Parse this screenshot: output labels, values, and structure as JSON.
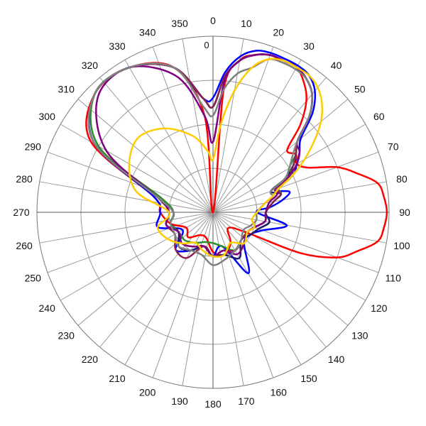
{
  "chart_data": {
    "type": "line",
    "subtype": "polar",
    "title": "",
    "angle_unit": "degrees",
    "angle_direction": "clockwise",
    "zero_position": "top",
    "angle_tick_labels": [
      "0",
      "10",
      "20",
      "30",
      "40",
      "50",
      "60",
      "70",
      "80",
      "90",
      "100",
      "110",
      "120",
      "130",
      "140",
      "150",
      "160",
      "170",
      "180",
      "190",
      "200",
      "210",
      "220",
      "230",
      "240",
      "250",
      "260",
      "270",
      "280",
      "290",
      "300",
      "310",
      "320",
      "330",
      "340",
      "350"
    ],
    "radial_axis": {
      "rmin": -40,
      "rmax": 0,
      "rings": [
        -30,
        -20,
        -10,
        0
      ],
      "tick_label": "0",
      "tick_label_value": 0
    },
    "grid": true,
    "legend": "none",
    "series": [
      {
        "color": "#ff0000",
        "theta": [
          0,
          5,
          10,
          15,
          20,
          25,
          30,
          35,
          40,
          45,
          50,
          55,
          60,
          65,
          70,
          75,
          80,
          85,
          90,
          95,
          100,
          105,
          110,
          115,
          120,
          135,
          150,
          165,
          180,
          195,
          210,
          225,
          240,
          255,
          270,
          285,
          300,
          315,
          330,
          345,
          355
        ],
        "r": [
          -40,
          -12,
          -5,
          -3,
          -2,
          -2,
          -2,
          -4,
          -7,
          -12,
          -18,
          -17,
          -18,
          -16,
          -10,
          -6,
          -2,
          -1,
          -0.5,
          -1,
          -2,
          -6,
          -10,
          -18,
          -30,
          -35,
          -32,
          -30,
          -31,
          -34,
          -34,
          -32,
          -33,
          -30,
          -28,
          -26,
          -8,
          -2,
          -2,
          -6,
          -18
        ]
      },
      {
        "color": "#0000ff",
        "theta": [
          0,
          5,
          10,
          15,
          20,
          25,
          30,
          35,
          40,
          45,
          50,
          55,
          60,
          65,
          70,
          75,
          80,
          85,
          90,
          100,
          110,
          120,
          135,
          150,
          165,
          180,
          195,
          210,
          225,
          240,
          255,
          270,
          285,
          300,
          315,
          330,
          345,
          355
        ],
        "r": [
          -14,
          -8,
          -4,
          -2,
          -1.5,
          -1.5,
          -1.5,
          -2,
          -4,
          -8,
          -14,
          -16,
          -18,
          -20,
          -25,
          -22,
          -24,
          -27,
          -30,
          -23,
          -28,
          -30,
          -30,
          -24,
          -32,
          -30,
          -32,
          -30,
          -28,
          -32,
          -27,
          -28,
          -26,
          -9,
          -2,
          -2,
          -6,
          -14
        ]
      },
      {
        "color": "#1a1a6e",
        "theta": [
          0,
          5,
          10,
          15,
          20,
          25,
          30,
          35,
          40,
          45,
          50,
          55,
          60,
          65,
          70,
          75,
          80,
          90,
          100,
          110,
          120,
          135,
          150,
          165,
          180,
          195,
          210,
          225,
          240,
          255,
          270,
          285,
          300,
          315,
          330,
          345,
          355
        ],
        "r": [
          -16,
          -9,
          -5,
          -3,
          -2,
          -2,
          -2,
          -3,
          -5,
          -9,
          -15,
          -17,
          -19,
          -22,
          -26,
          -24,
          -26,
          -28,
          -27,
          -29,
          -30,
          -31,
          -28,
          -30,
          -30,
          -32,
          -30,
          -29,
          -31,
          -30,
          -31,
          -27,
          -9,
          -2,
          -2,
          -6,
          -14
        ]
      },
      {
        "color": "#2e8b2e",
        "theta": [
          0,
          5,
          10,
          15,
          20,
          25,
          30,
          35,
          40,
          45,
          50,
          55,
          60,
          65,
          70,
          75,
          80,
          90,
          100,
          110,
          120,
          135,
          150,
          165,
          180,
          195,
          210,
          225,
          240,
          255,
          270,
          285,
          300,
          315,
          330,
          345,
          355
        ],
        "r": [
          -16,
          -9,
          -5,
          -3,
          -2,
          -2,
          -2,
          -3,
          -5,
          -9,
          -15,
          -17,
          -20,
          -20,
          -24,
          -24,
          -26,
          -28,
          -28,
          -30,
          -31,
          -31,
          -30,
          -32,
          -33,
          -33,
          -32,
          -31,
          -31,
          -30,
          -31,
          -28,
          -10,
          -2,
          -2,
          -6,
          -14
        ]
      },
      {
        "color": "#8b2252",
        "theta": [
          0,
          5,
          10,
          15,
          20,
          25,
          30,
          35,
          40,
          45,
          50,
          55,
          60,
          65,
          70,
          75,
          80,
          90,
          100,
          110,
          120,
          135,
          150,
          165,
          180,
          195,
          210,
          225,
          240,
          255,
          270,
          285,
          300,
          315,
          330,
          345,
          355
        ],
        "r": [
          -16,
          -9,
          -5,
          -3,
          -2,
          -2,
          -2,
          -3,
          -5,
          -9,
          -15,
          -17,
          -19,
          -21,
          -25,
          -24,
          -26,
          -28,
          -28,
          -30,
          -31,
          -31,
          -30,
          -31,
          -30,
          -32,
          -28,
          -28,
          -30,
          -29,
          -30,
          -27,
          -9,
          -2,
          -2,
          -6,
          -14
        ]
      },
      {
        "color": "#800080",
        "theta": [
          0,
          5,
          10,
          15,
          20,
          25,
          30,
          35,
          40,
          45,
          50,
          55,
          60,
          65,
          70,
          75,
          80,
          90,
          100,
          110,
          120,
          135,
          150,
          165,
          180,
          195,
          210,
          225,
          240,
          255,
          270,
          285,
          300,
          315,
          330,
          345,
          355
        ],
        "r": [
          -24,
          -10,
          -5,
          -3,
          -2,
          -2,
          -2,
          -3,
          -5,
          -9,
          -15,
          -16,
          -18,
          -21,
          -24,
          -25,
          -27,
          -28,
          -28,
          -30,
          -31,
          -30,
          -29,
          -31,
          -30,
          -32,
          -31,
          -30,
          -31,
          -29,
          -30,
          -27,
          -12,
          -3,
          -2,
          -8,
          -18
        ]
      },
      {
        "color": "#808080",
        "theta": [
          0,
          5,
          10,
          15,
          20,
          25,
          30,
          35,
          40,
          45,
          50,
          55,
          60,
          65,
          70,
          75,
          80,
          90,
          100,
          110,
          120,
          135,
          150,
          165,
          180,
          195,
          210,
          225,
          240,
          255,
          270,
          285,
          300,
          315,
          330,
          345,
          355
        ],
        "r": [
          -18,
          -12,
          -8,
          -6,
          -3,
          -2.5,
          -2.5,
          -3,
          -5,
          -9,
          -15,
          -18,
          -20,
          -22,
          -26,
          -26,
          -28,
          -30,
          -30,
          -31,
          -32,
          -31,
          -30,
          -29,
          -28,
          -30,
          -30,
          -29,
          -30,
          -30,
          -31,
          -27,
          -9,
          -2,
          -2,
          -6,
          -16
        ]
      },
      {
        "color": "#ffcc00",
        "theta": [
          0,
          5,
          10,
          15,
          20,
          25,
          30,
          35,
          40,
          45,
          50,
          55,
          60,
          65,
          70,
          75,
          80,
          90,
          100,
          110,
          120,
          135,
          150,
          165,
          180,
          195,
          210,
          225,
          240,
          255,
          270,
          285,
          300,
          315,
          330,
          345,
          355
        ],
        "r": [
          -28,
          -20,
          -12,
          -6,
          -3,
          -2,
          -2,
          -2,
          -3,
          -5,
          -8,
          -12,
          -16,
          -20,
          -24,
          -26,
          -28,
          -30,
          -31,
          -30,
          -31,
          -30,
          -32,
          -30,
          -30,
          -31,
          -32,
          -30,
          -28,
          -27,
          -30,
          -22,
          -18,
          -16,
          -18,
          -22,
          -26
        ]
      }
    ]
  }
}
